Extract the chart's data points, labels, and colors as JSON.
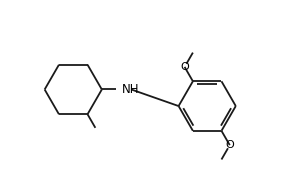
{
  "bg_color": "#ffffff",
  "bond_color": "#1a1a1a",
  "text_color": "#000000",
  "line_width": 1.3,
  "font_size": 8.0,
  "figsize": [
    3.06,
    1.85
  ],
  "dpi": 100,
  "xlim": [
    -0.5,
    9.5
  ],
  "ylim": [
    -0.3,
    5.8
  ]
}
